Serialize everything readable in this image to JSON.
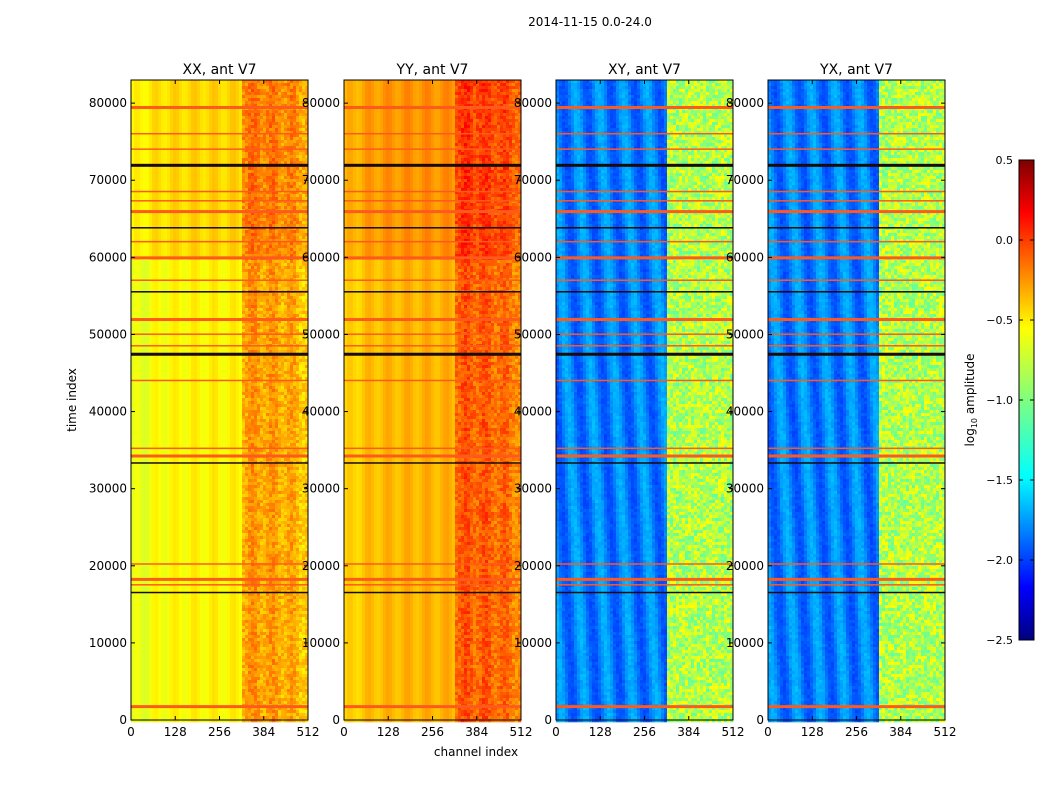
{
  "chart_data": {
    "type": "heatmap",
    "title": "2014-11-15 0.0-24.0",
    "xlabel": "channel index",
    "ylabel": "time index",
    "xlim": [
      0,
      512
    ],
    "ylim": [
      0,
      83000
    ],
    "xticks": [
      0,
      128,
      256,
      384,
      512
    ],
    "yticks": [
      0,
      10000,
      20000,
      30000,
      40000,
      50000,
      60000,
      70000,
      80000
    ],
    "rfi_band_channels": [
      325,
      512
    ],
    "flagged_time_rows": [
      1800,
      16500,
      17500,
      18300,
      20200,
      33300,
      34300,
      35200,
      44000,
      47500,
      48500,
      50000,
      52000,
      55500,
      57000,
      60000,
      62000,
      63800,
      66000,
      67300,
      68500,
      72000,
      74000,
      76000,
      79500
    ],
    "panels": [
      {
        "title": "XX, ant V7",
        "polarization": "XX",
        "mean_log_amplitude": -0.6
      },
      {
        "title": "YY, ant V7",
        "polarization": "YY",
        "mean_log_amplitude": -0.4
      },
      {
        "title": "XY, ant V7",
        "polarization": "XY",
        "mean_log_amplitude": -1.8
      },
      {
        "title": "YX, ant V7",
        "polarization": "YX",
        "mean_log_amplitude": -1.8
      }
    ],
    "colorbar": {
      "label_base": "log",
      "label_sub": "10",
      "label_rest": " amplitude",
      "range": [
        -2.5,
        0.5
      ],
      "ticks": [
        "0.5",
        "0.0",
        "−0.5",
        "−1.0",
        "−1.5",
        "−2.0",
        "−2.5"
      ],
      "colormap": "jet"
    }
  }
}
